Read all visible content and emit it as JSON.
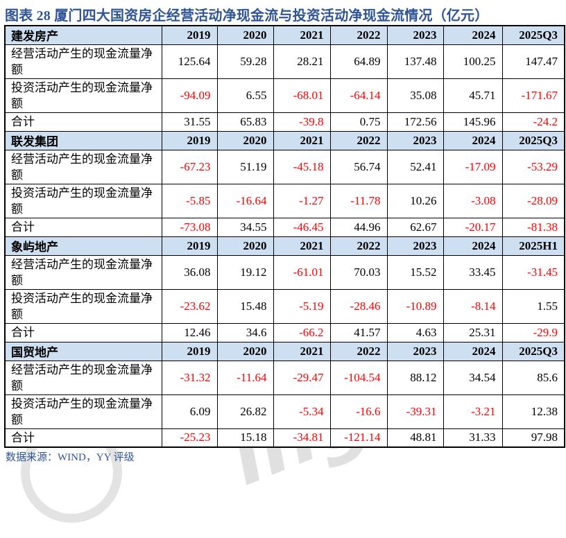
{
  "title": "图表 28 厦门四大国资房企经营活动净现金流与投资活动净现金流情况（亿元）",
  "footer": "数据来源：WIND，YY 评级",
  "watermark": "ing",
  "colors": {
    "title_blue": "#2E5496",
    "header_bg": "#CFDFF2",
    "negative_red": "#FF0000",
    "border_black": "#000000"
  },
  "sections": [
    {
      "company": "建发房产",
      "columns": [
        "2019",
        "2020",
        "2021",
        "2022",
        "2023",
        "2024",
        "2025Q3"
      ],
      "rows": [
        {
          "label": "经营活动产生的现金流量净额",
          "values": [
            "125.64",
            "59.28",
            "28.21",
            "64.89",
            "137.48",
            "100.25",
            "147.47"
          ]
        },
        {
          "label": "投资活动产生的现金流量净额",
          "values": [
            "-94.09",
            "6.55",
            "-68.01",
            "-64.14",
            "35.08",
            "45.71",
            "-171.67"
          ]
        },
        {
          "label": "合计",
          "values": [
            "31.55",
            "65.83",
            "-39.8",
            "0.75",
            "172.56",
            "145.96",
            "-24.2"
          ]
        }
      ]
    },
    {
      "company": "联发集团",
      "columns": [
        "2019",
        "2020",
        "2021",
        "2022",
        "2023",
        "2024",
        "2025Q3"
      ],
      "rows": [
        {
          "label": "经营活动产生的现金流量净额",
          "values": [
            "-67.23",
            "51.19",
            "-45.18",
            "56.74",
            "52.41",
            "-17.09",
            "-53.29"
          ]
        },
        {
          "label": "投资活动产生的现金流量净额",
          "values": [
            "-5.85",
            "-16.64",
            "-1.27",
            "-11.78",
            "10.26",
            "-3.08",
            "-28.09"
          ]
        },
        {
          "label": "合计",
          "values": [
            "-73.08",
            "34.55",
            "-46.45",
            "44.96",
            "62.67",
            "-20.17",
            "-81.38"
          ]
        }
      ]
    },
    {
      "company": "象屿地产",
      "columns": [
        "2019",
        "2020",
        "2021",
        "2022",
        "2023",
        "2024",
        "2025H1"
      ],
      "rows": [
        {
          "label": "经营活动产生的现金流量净额",
          "values": [
            "36.08",
            "19.12",
            "-61.01",
            "70.03",
            "15.52",
            "33.45",
            "-31.45"
          ]
        },
        {
          "label": "投资活动产生的现金流量净额",
          "values": [
            "-23.62",
            "15.48",
            "-5.19",
            "-28.46",
            "-10.89",
            "-8.14",
            "1.55"
          ]
        },
        {
          "label": "合计",
          "values": [
            "12.46",
            "34.6",
            "-66.2",
            "41.57",
            "4.63",
            "25.31",
            "-29.9"
          ]
        }
      ]
    },
    {
      "company": "国贸地产",
      "columns": [
        "2019",
        "2020",
        "2021",
        "2022",
        "2023",
        "2024",
        "2025Q3"
      ],
      "rows": [
        {
          "label": "经营活动产生的现金流量净额",
          "values": [
            "-31.32",
            "-11.64",
            "-29.47",
            "-104.54",
            "88.12",
            "34.54",
            "85.6"
          ]
        },
        {
          "label": "投资活动产生的现金流量净额",
          "values": [
            "6.09",
            "26.82",
            "-5.34",
            "-16.6",
            "-39.31",
            "-3.21",
            "12.38"
          ]
        },
        {
          "label": "合计",
          "values": [
            "-25.23",
            "15.18",
            "-34.81",
            "-121.14",
            "48.81",
            "31.33",
            "97.98"
          ]
        }
      ]
    }
  ]
}
